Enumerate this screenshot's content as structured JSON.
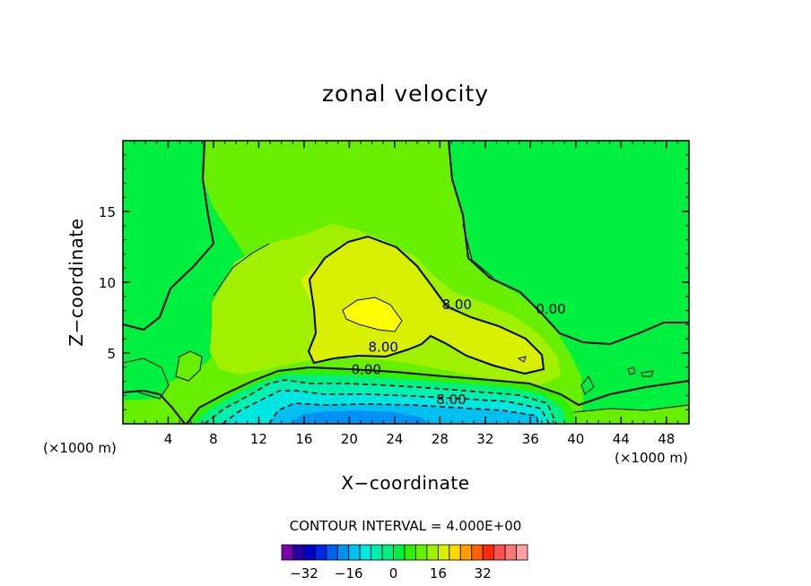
{
  "chart_data": {
    "type": "contour",
    "title": "zonal velocity",
    "xlabel": "X−coordinate",
    "ylabel": "Z−coordinate",
    "x_unit_label": "(×1000 m)",
    "xlim": [
      0,
      50
    ],
    "ylim": [
      0,
      20
    ],
    "x_ticks": [
      4,
      8,
      12,
      16,
      20,
      24,
      28,
      32,
      36,
      40,
      44,
      48
    ],
    "y_ticks": [
      5,
      10,
      15
    ],
    "contour_interval_text": "CONTOUR INTERVAL = 4.000E+00",
    "contour_labels": [
      {
        "x": 29.5,
        "y": 8.1,
        "text": "8.00"
      },
      {
        "x": 37.8,
        "y": 7.8,
        "text": "0.00"
      },
      {
        "x": 23.0,
        "y": 5.1,
        "text": "8.00"
      },
      {
        "x": 21.5,
        "y": 3.5,
        "text": "0.00"
      },
      {
        "x": 29.0,
        "y": 1.4,
        "text": "8.00"
      }
    ],
    "colorbar": {
      "levels": [
        -36,
        -32,
        -28,
        -24,
        -20,
        -16,
        -12,
        -8,
        -4,
        0,
        4,
        8,
        12,
        16,
        20,
        24,
        28,
        32,
        36
      ],
      "tick_labels": [
        {
          "value": -32,
          "text": "−32"
        },
        {
          "value": -16,
          "text": "−16"
        },
        {
          "value": 0,
          "text": "0"
        },
        {
          "value": 16,
          "text": "16"
        },
        {
          "value": 32,
          "text": "32"
        }
      ],
      "colors": [
        "#7a00b0",
        "#2a00a8",
        "#0000c8",
        "#0028e6",
        "#0060f0",
        "#0092f2",
        "#00c0f0",
        "#00e6e0",
        "#00f0b0",
        "#00f080",
        "#00f040",
        "#30f000",
        "#66f000",
        "#a0f000",
        "#d8f000",
        "#ffd800",
        "#ffa000",
        "#ff6000",
        "#ff2800",
        "#ff5050",
        "#ff7878",
        "#ffa0a0"
      ]
    },
    "regions": [
      {
        "level": 0,
        "color": "#00f040"
      },
      {
        "level": 4,
        "color": "#66f000"
      },
      {
        "level": 8,
        "color": "#a0f000"
      },
      {
        "level": 12,
        "color": "#d8f000"
      },
      {
        "level": 16,
        "color": "#ffff00"
      },
      {
        "level": -4,
        "color": "#30f000"
      },
      {
        "level": -8,
        "color": "#00f080"
      },
      {
        "level": -12,
        "color": "#00f0b0"
      },
      {
        "level": -16,
        "color": "#00e6e0"
      },
      {
        "level": -20,
        "color": "#00c0f0"
      },
      {
        "level": -24,
        "color": "#0092f2"
      }
    ]
  }
}
